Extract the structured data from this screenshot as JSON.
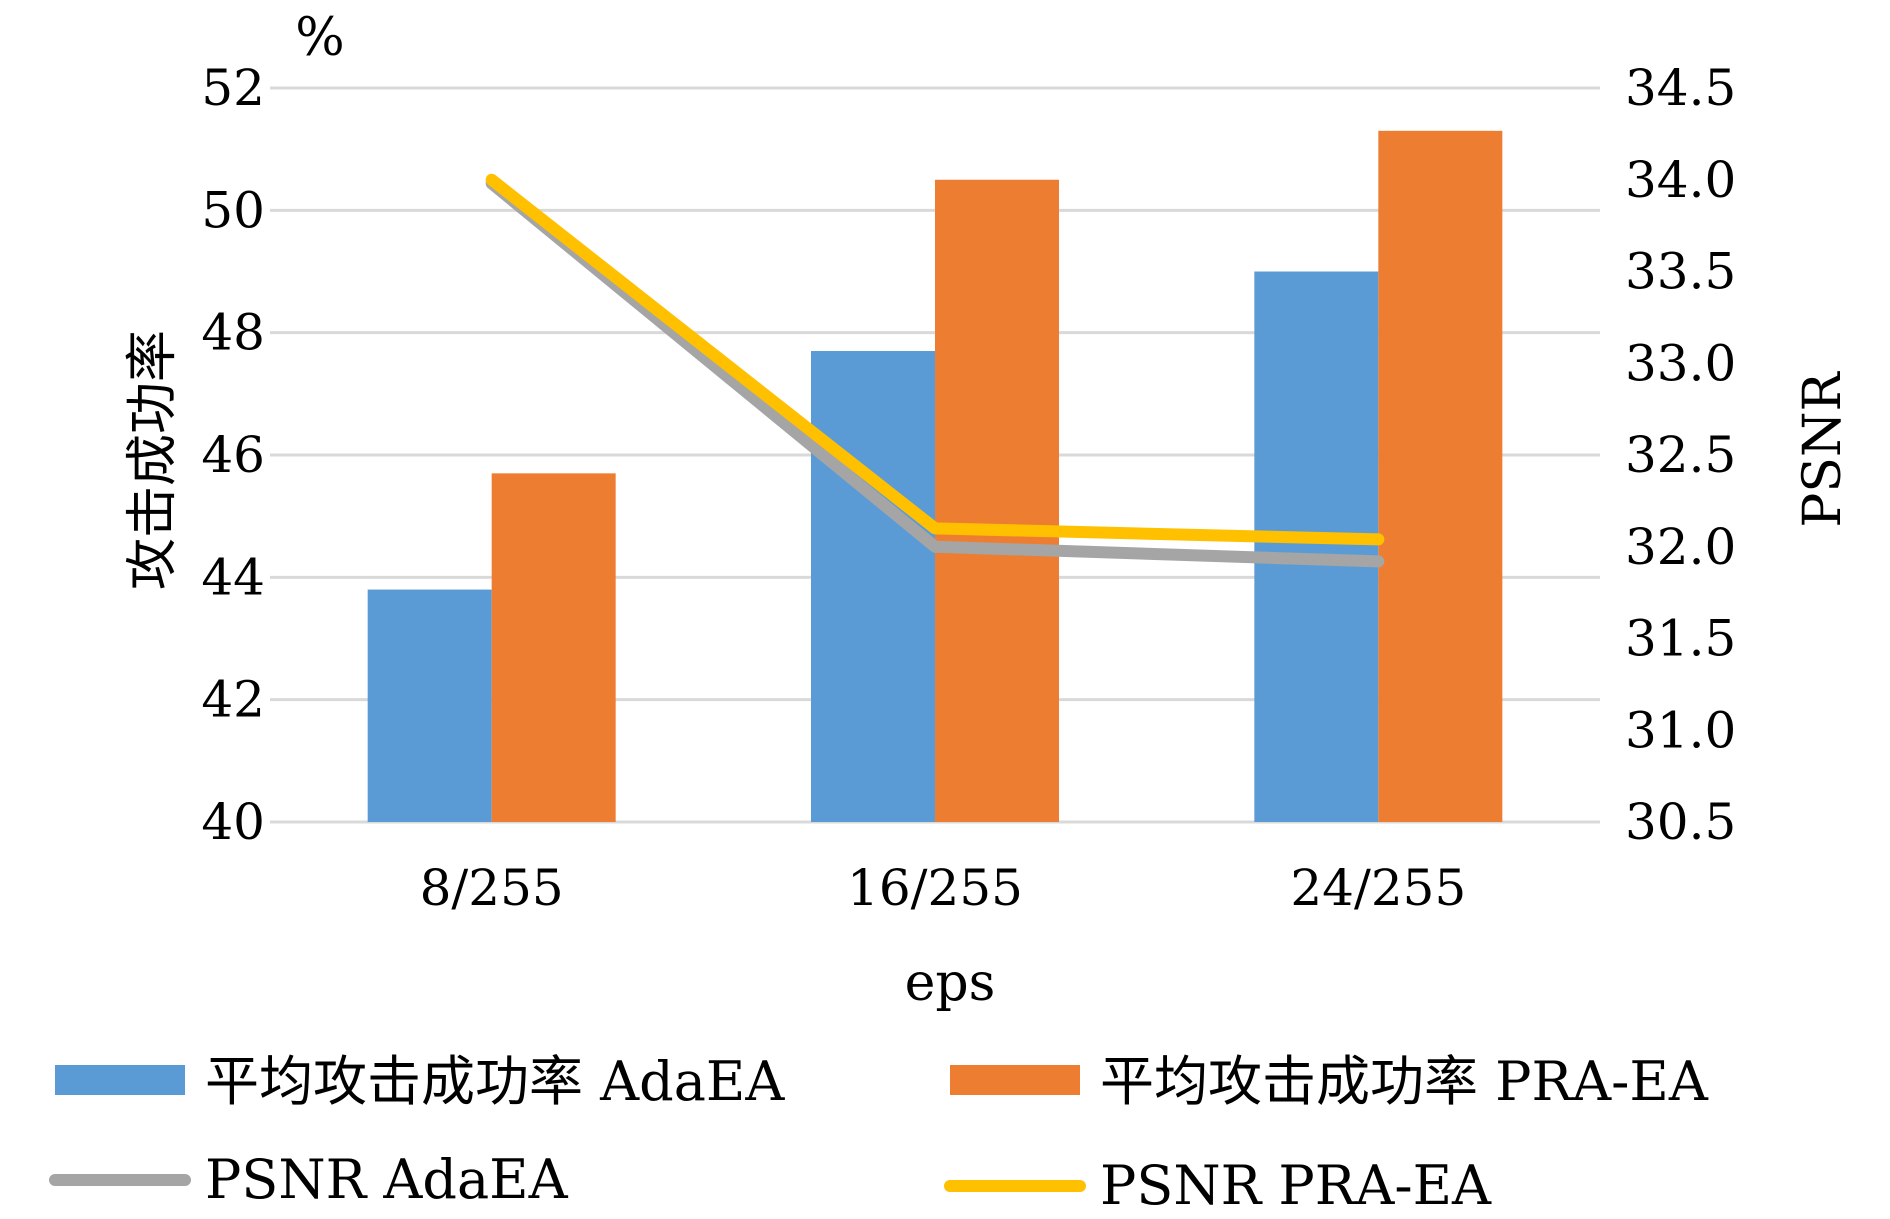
{
  "chart_data": {
    "type": "bar",
    "categories": [
      "8/255",
      "16/255",
      "24/255"
    ],
    "xlabel": "eps",
    "ylabel_left": "攻击成功率",
    "left_unit": "%",
    "ylabel_right": "PSNR",
    "left_axis": {
      "min": 40,
      "max": 52,
      "step": 2,
      "ticks": [
        "40",
        "42",
        "44",
        "46",
        "48",
        "50",
        "52"
      ]
    },
    "right_axis": {
      "min": 30.5,
      "max": 34.5,
      "step": 0.5,
      "ticks": [
        "30.5",
        "31.0",
        "31.5",
        "32.0",
        "32.5",
        "33.0",
        "33.5",
        "34.0",
        "34.5"
      ]
    },
    "grid": true,
    "legend_position": "bottom",
    "bar_series": [
      {
        "name": "平均攻击成功率 AdaEA",
        "axis": "left",
        "color": "#5B9BD5",
        "values": [
          43.8,
          47.7,
          49.0
        ]
      },
      {
        "name": "平均攻击成功率 PRA-EA",
        "axis": "left",
        "color": "#ED7D31",
        "values": [
          45.7,
          50.5,
          51.3
        ]
      }
    ],
    "line_series": [
      {
        "name": "PSNR AdaEA",
        "axis": "right",
        "color": "#A5A5A5",
        "values": [
          33.98,
          32.0,
          31.92
        ]
      },
      {
        "name": "PSNR PRA-EA",
        "axis": "right",
        "color": "#FFC000",
        "values": [
          34.0,
          32.1,
          32.04
        ]
      }
    ]
  }
}
